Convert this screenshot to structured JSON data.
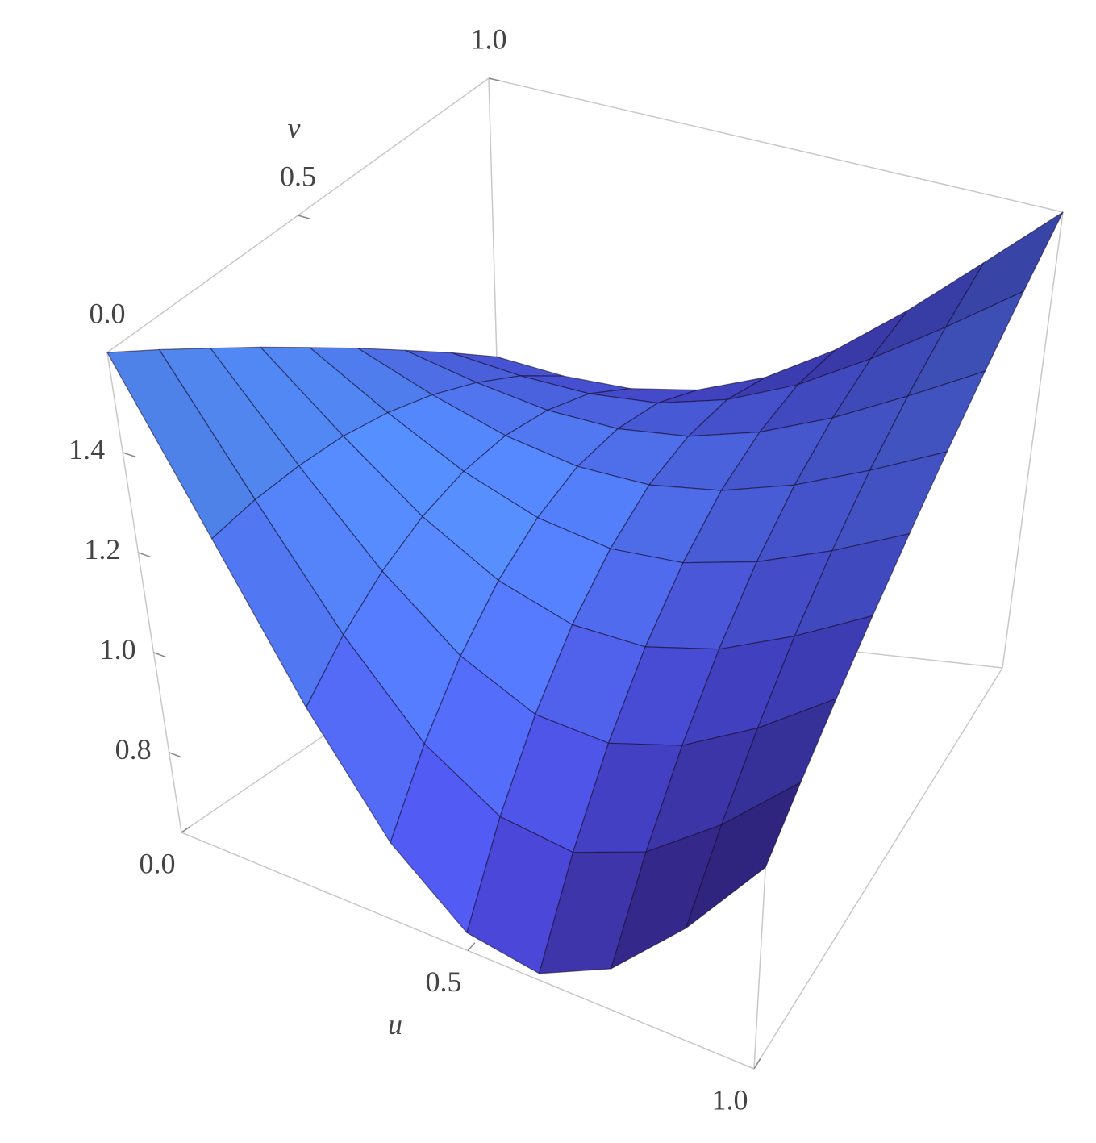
{
  "chart_data": {
    "type": "surface3d",
    "x_label": "u",
    "y_label": "v",
    "x": [
      0,
      0.125,
      0.25,
      0.375,
      0.5,
      0.625,
      0.75,
      0.875,
      1
    ],
    "y": [
      0,
      0.125,
      0.25,
      0.375,
      0.5,
      0.625,
      0.75,
      0.875,
      1
    ],
    "z": [
      [
        1.6,
        1.284,
        1.005,
        0.795,
        0.675,
        0.653,
        0.72,
        0.856,
        1.03
      ],
      [
        1.538,
        1.294,
        1.08,
        0.918,
        0.827,
        0.809,
        0.862,
        0.967,
        1.102
      ],
      [
        1.475,
        1.294,
        1.136,
        1.018,
        0.951,
        0.942,
        0.985,
        1.067,
        1.173
      ],
      [
        1.413,
        1.286,
        1.174,
        1.093,
        1.05,
        1.05,
        1.089,
        1.159,
        1.244
      ],
      [
        1.35,
        1.266,
        1.193,
        1.143,
        1.122,
        1.134,
        1.176,
        1.239,
        1.315
      ],
      [
        1.288,
        1.236,
        1.194,
        1.17,
        1.17,
        1.195,
        1.243,
        1.31,
        1.387
      ],
      [
        1.225,
        1.196,
        1.175,
        1.171,
        1.188,
        1.229,
        1.291,
        1.37,
        1.458
      ],
      [
        1.163,
        1.147,
        1.14,
        1.149,
        1.183,
        1.241,
        1.323,
        1.42,
        1.529
      ],
      [
        1.1,
        1.086,
        1.084,
        1.103,
        1.15,
        1.228,
        1.334,
        1.461,
        1.6
      ]
    ],
    "xlim": [
      0,
      1
    ],
    "ylim": [
      0,
      1
    ],
    "zlim": [
      0.64,
      1.6
    ],
    "xticks": [
      {
        "value": 0,
        "label": "0.0"
      },
      {
        "value": 0.5,
        "label": "0.5"
      },
      {
        "value": 1,
        "label": "1.0"
      }
    ],
    "yticks": [
      {
        "value": 0,
        "label": "0.0"
      },
      {
        "value": 0.5,
        "label": "0.5"
      },
      {
        "value": 1,
        "label": "1.0"
      }
    ],
    "zticks": [
      0.8,
      {
        "value": 1,
        "label": "1.0"
      },
      1.2,
      1.4
    ],
    "colors": [
      "#3a1880",
      "#4f4fe8",
      "#52b0f8"
    ],
    "mesh": true
  }
}
